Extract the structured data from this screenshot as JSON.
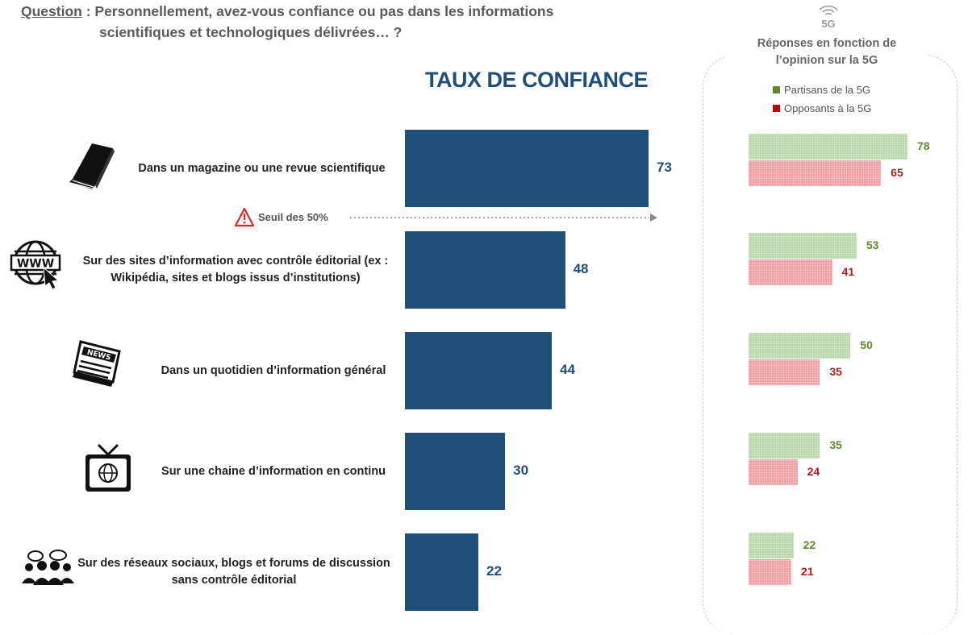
{
  "question": {
    "label": "Question",
    "separator": " : ",
    "line1": "Personnellement, avez-vous confiance ou pas dans les informations",
    "line2": "scientifiques et technologiques délivrées… ?"
  },
  "panel": {
    "icon_label": "5G",
    "title_line1": "Réponses en fonction de",
    "title_line2": "l’opinion sur la 5G"
  },
  "colors": {
    "main_bar": "#1f4e79",
    "partisans": "#b5d6a8",
    "opposants": "#f09a9d",
    "partisans_text": "#5f8a2c",
    "opposants_text": "#a71d22"
  },
  "chart_data": [
    {
      "type": "bar",
      "orientation": "horizontal",
      "title": "TAUX DE CONFIANCE",
      "categories": [
        [
          "Dans un magazine ou une revue scientifique"
        ],
        [
          "Sur des sites d’information avec contrôle éditorial (ex :",
          "Wikipédia, sites et blogs issus d’institutions)"
        ],
        [
          "Dans un quotidien d’information général"
        ],
        [
          "Sur une chaine d’information en continu"
        ],
        [
          "Sur des réseaux sociaux, blogs et forums de discussion",
          "sans contrôle éditorial"
        ]
      ],
      "category_icons": [
        "book-icon",
        "www-icon",
        "newspaper-icon",
        "tv-icon",
        "social-network-icon"
      ],
      "values": [
        73,
        48,
        44,
        30,
        22
      ],
      "xlim": [
        0,
        100
      ],
      "reference_line": {
        "value": 50,
        "label": "Seuil des 50%"
      }
    },
    {
      "type": "bar",
      "orientation": "horizontal",
      "legend": {
        "position": "top"
      },
      "series": [
        {
          "name": "Partisans de la 5G",
          "values": [
            78,
            53,
            50,
            35,
            22
          ]
        },
        {
          "name": "Opposants à la 5G",
          "values": [
            65,
            41,
            35,
            24,
            21
          ]
        }
      ],
      "xlim": [
        0,
        100
      ]
    }
  ]
}
